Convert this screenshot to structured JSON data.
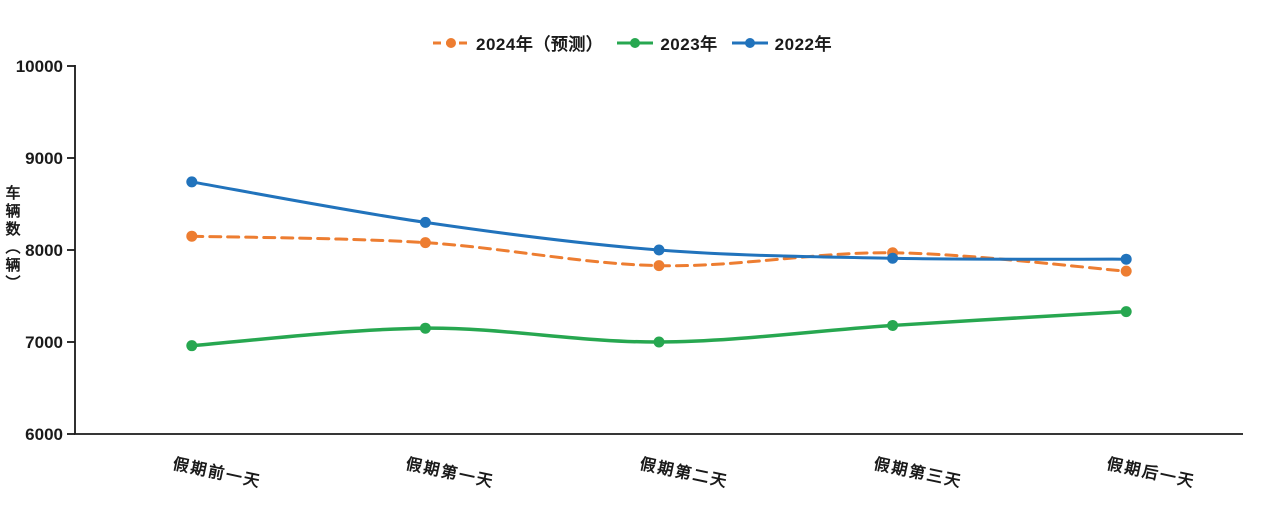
{
  "chart_data": {
    "type": "line",
    "title": "",
    "ylabel": "车辆数（辆）",
    "xlabel": "",
    "ylim": [
      6000,
      10000
    ],
    "ytick_step": 1000,
    "grid": false,
    "legend_position": "top-center",
    "categories": [
      "假期前一天",
      "假期第一天",
      "假期第二天",
      "假期第三天",
      "假期后一天"
    ],
    "series": [
      {
        "name": "2024年（预测）",
        "values": [
          8150,
          8080,
          7830,
          7970,
          7770
        ],
        "color": "#ED7D31",
        "dashed": true,
        "marker": "circle"
      },
      {
        "name": "2023年",
        "values": [
          6960,
          7150,
          7000,
          7180,
          7330
        ],
        "color": "#27A750",
        "dashed": false,
        "marker": "circle"
      },
      {
        "name": "2022年",
        "values": [
          8740,
          8300,
          8000,
          7910,
          7900
        ],
        "color": "#2173BC",
        "dashed": false,
        "marker": "circle"
      }
    ],
    "axis_color": "#1a1a1a",
    "text_color": "#1a1a1a"
  }
}
